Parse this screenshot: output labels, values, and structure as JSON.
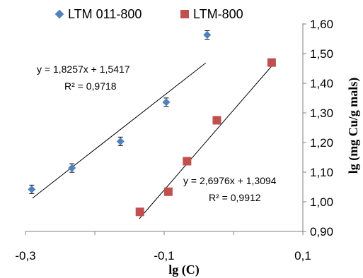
{
  "chart_data": {
    "type": "scatter",
    "xlabel": "lg (C)",
    "ylabel": "lg (mg Cu/g mals)",
    "xlim": [
      -0.3,
      0.1
    ],
    "ylim": [
      0.9,
      1.6
    ],
    "x_ticks": [
      "-0,3",
      "-0,1",
      "0,1"
    ],
    "y_ticks": [
      "0,90",
      "1,00",
      "1,10",
      "1,20",
      "1,30",
      "1,40",
      "1,50",
      "1,60"
    ],
    "legend_position": "top",
    "series": [
      {
        "name": "LTM 011-800",
        "marker": "diamond",
        "color": "#4F81BD",
        "points": [
          {
            "x": -0.291,
            "y": 1.042
          },
          {
            "x": -0.233,
            "y": 1.114
          },
          {
            "x": -0.163,
            "y": 1.204
          },
          {
            "x": -0.097,
            "y": 1.336
          },
          {
            "x": -0.038,
            "y": 1.563
          }
        ],
        "error_bars": true,
        "trendline": {
          "slope": 1.8257,
          "intercept": 1.5417,
          "x_range": [
            -0.29,
            -0.04
          ]
        },
        "equation": "y = 1,8257x + 1,5417",
        "r2": "R² = 0,9718"
      },
      {
        "name": "LTM-800",
        "marker": "square",
        "color": "#C0504D",
        "points": [
          {
            "x": -0.135,
            "y": 0.966
          },
          {
            "x": -0.094,
            "y": 1.034
          },
          {
            "x": -0.067,
            "y": 1.137
          },
          {
            "x": -0.024,
            "y": 1.275
          },
          {
            "x": 0.055,
            "y": 1.47
          }
        ],
        "error_bars": false,
        "trendline": {
          "slope": 2.6976,
          "intercept": 1.3094,
          "x_range": [
            -0.136,
            0.055
          ]
        },
        "equation": "y = 2,6976x + 1,3094",
        "r2": "R² = 0,9912"
      }
    ]
  }
}
